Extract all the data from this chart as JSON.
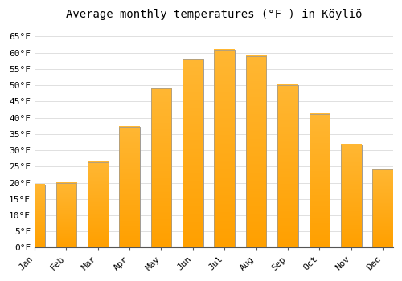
{
  "title": "Average monthly temperatures (°F ) in Köyliö",
  "months": [
    "Jan",
    "Feb",
    "Mar",
    "Apr",
    "May",
    "Jun",
    "Jul",
    "Aug",
    "Sep",
    "Oct",
    "Nov",
    "Dec"
  ],
  "values": [
    19.4,
    19.9,
    26.4,
    37.2,
    49.1,
    57.9,
    61.0,
    58.8,
    50.0,
    41.2,
    31.8,
    24.1
  ],
  "bar_color_top": "#FFB733",
  "bar_color_bottom": "#FFA000",
  "bar_edge_color": "#999999",
  "background_color": "#ffffff",
  "grid_color": "#e0e0e0",
  "ylim": [
    0,
    68
  ],
  "yticks": [
    0,
    5,
    10,
    15,
    20,
    25,
    30,
    35,
    40,
    45,
    50,
    55,
    60,
    65
  ],
  "ytick_labels": [
    "0°F",
    "5°F",
    "10°F",
    "15°F",
    "20°F",
    "25°F",
    "30°F",
    "35°F",
    "40°F",
    "45°F",
    "50°F",
    "55°F",
    "60°F",
    "65°F"
  ],
  "font_family": "monospace",
  "title_fontsize": 10,
  "tick_fontsize": 8
}
